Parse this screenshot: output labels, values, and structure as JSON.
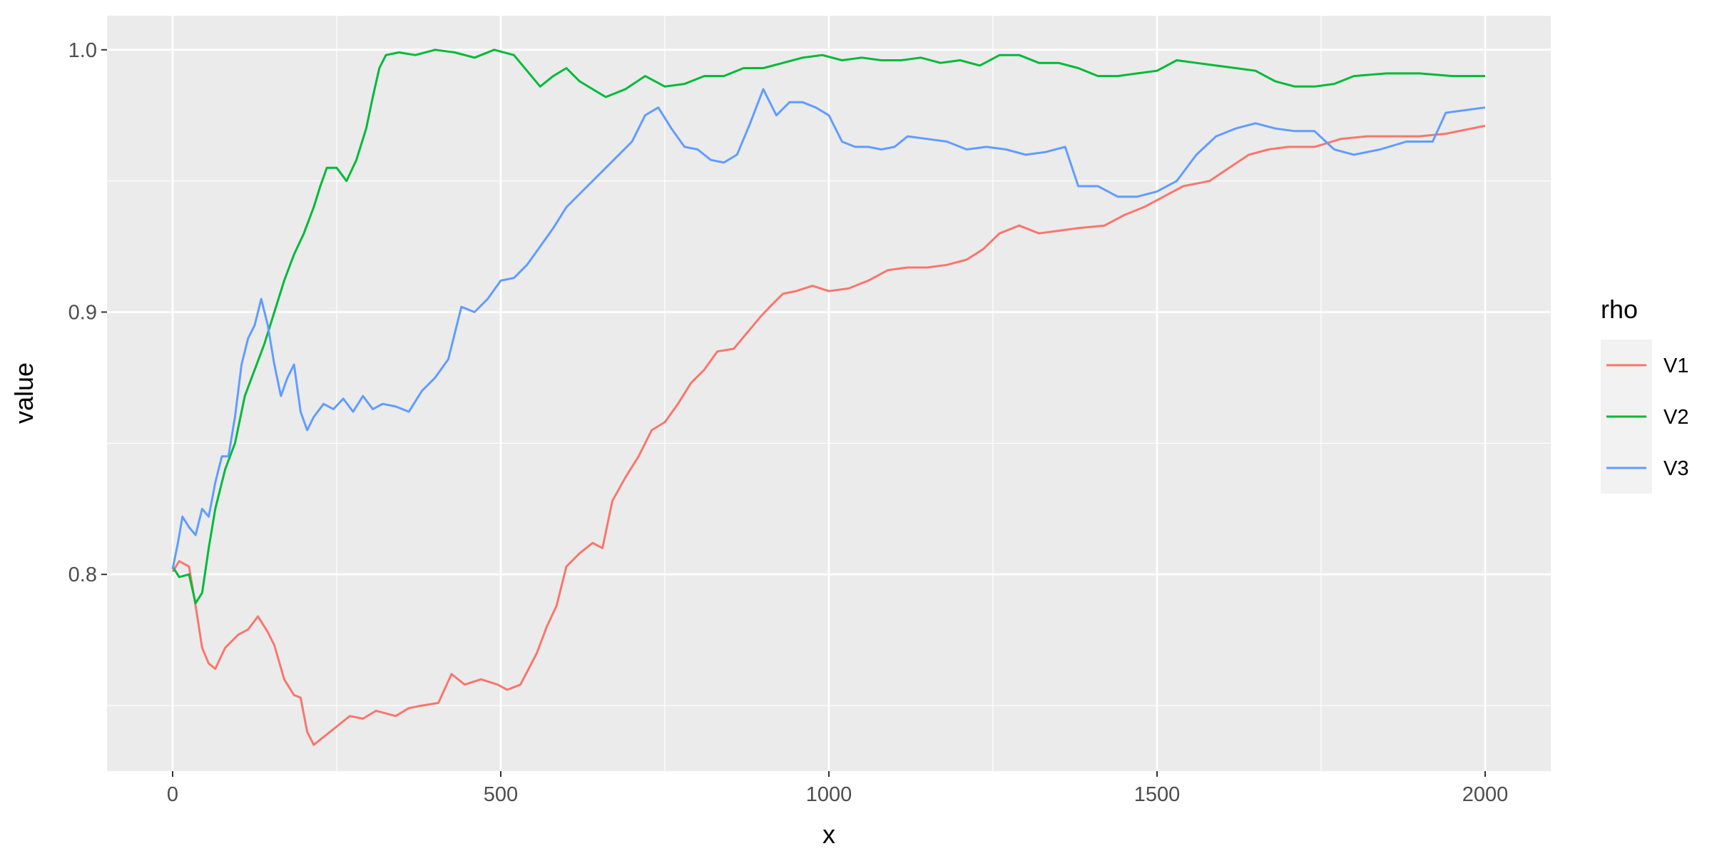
{
  "chart_data": {
    "type": "line",
    "xlabel": "x",
    "ylabel": "value",
    "xlim": [
      -100,
      2100
    ],
    "ylim": [
      0.725,
      1.013
    ],
    "x_ticks": [
      0,
      500,
      1000,
      1500,
      2000
    ],
    "x_tick_labels": [
      "0",
      "500",
      "1000",
      "1500",
      "2000"
    ],
    "y_ticks": [
      0.8,
      0.9,
      1.0
    ],
    "y_tick_labels": [
      "0.8",
      "0.9",
      "1.0"
    ],
    "grid": true,
    "legend": {
      "title": "rho",
      "position": "right"
    },
    "series": [
      {
        "name": "V1",
        "color": "#F8766D",
        "points": [
          [
            0,
            0.801
          ],
          [
            10,
            0.805
          ],
          [
            25,
            0.803
          ],
          [
            35,
            0.788
          ],
          [
            45,
            0.772
          ],
          [
            55,
            0.766
          ],
          [
            65,
            0.764
          ],
          [
            80,
            0.772
          ],
          [
            100,
            0.777
          ],
          [
            115,
            0.779
          ],
          [
            130,
            0.784
          ],
          [
            145,
            0.778
          ],
          [
            155,
            0.773
          ],
          [
            170,
            0.76
          ],
          [
            185,
            0.754
          ],
          [
            195,
            0.753
          ],
          [
            205,
            0.74
          ],
          [
            215,
            0.735
          ],
          [
            230,
            0.738
          ],
          [
            250,
            0.742
          ],
          [
            270,
            0.746
          ],
          [
            290,
            0.745
          ],
          [
            310,
            0.748
          ],
          [
            340,
            0.746
          ],
          [
            360,
            0.749
          ],
          [
            380,
            0.75
          ],
          [
            405,
            0.751
          ],
          [
            425,
            0.762
          ],
          [
            445,
            0.758
          ],
          [
            470,
            0.76
          ],
          [
            495,
            0.758
          ],
          [
            510,
            0.756
          ],
          [
            530,
            0.758
          ],
          [
            555,
            0.77
          ],
          [
            570,
            0.78
          ],
          [
            585,
            0.788
          ],
          [
            600,
            0.803
          ],
          [
            620,
            0.808
          ],
          [
            640,
            0.812
          ],
          [
            655,
            0.81
          ],
          [
            670,
            0.828
          ],
          [
            690,
            0.837
          ],
          [
            710,
            0.845
          ],
          [
            730,
            0.855
          ],
          [
            750,
            0.858
          ],
          [
            770,
            0.865
          ],
          [
            790,
            0.873
          ],
          [
            810,
            0.878
          ],
          [
            830,
            0.885
          ],
          [
            855,
            0.886
          ],
          [
            875,
            0.892
          ],
          [
            895,
            0.898
          ],
          [
            910,
            0.902
          ],
          [
            930,
            0.907
          ],
          [
            950,
            0.908
          ],
          [
            975,
            0.91
          ],
          [
            1000,
            0.908
          ],
          [
            1030,
            0.909
          ],
          [
            1060,
            0.912
          ],
          [
            1090,
            0.916
          ],
          [
            1120,
            0.917
          ],
          [
            1150,
            0.917
          ],
          [
            1180,
            0.918
          ],
          [
            1210,
            0.92
          ],
          [
            1235,
            0.924
          ],
          [
            1260,
            0.93
          ],
          [
            1290,
            0.933
          ],
          [
            1320,
            0.93
          ],
          [
            1350,
            0.931
          ],
          [
            1380,
            0.932
          ],
          [
            1420,
            0.933
          ],
          [
            1450,
            0.937
          ],
          [
            1480,
            0.94
          ],
          [
            1510,
            0.944
          ],
          [
            1540,
            0.948
          ],
          [
            1580,
            0.95
          ],
          [
            1610,
            0.955
          ],
          [
            1640,
            0.96
          ],
          [
            1670,
            0.962
          ],
          [
            1700,
            0.963
          ],
          [
            1740,
            0.963
          ],
          [
            1780,
            0.966
          ],
          [
            1820,
            0.967
          ],
          [
            1860,
            0.967
          ],
          [
            1900,
            0.967
          ],
          [
            1940,
            0.968
          ],
          [
            2000,
            0.971
          ]
        ]
      },
      {
        "name": "V2",
        "color": "#00BA38",
        "points": [
          [
            0,
            0.803
          ],
          [
            10,
            0.799
          ],
          [
            25,
            0.8
          ],
          [
            35,
            0.789
          ],
          [
            45,
            0.793
          ],
          [
            55,
            0.81
          ],
          [
            65,
            0.825
          ],
          [
            80,
            0.84
          ],
          [
            95,
            0.85
          ],
          [
            110,
            0.868
          ],
          [
            125,
            0.878
          ],
          [
            140,
            0.888
          ],
          [
            155,
            0.9
          ],
          [
            170,
            0.912
          ],
          [
            185,
            0.922
          ],
          [
            200,
            0.93
          ],
          [
            215,
            0.94
          ],
          [
            225,
            0.948
          ],
          [
            235,
            0.955
          ],
          [
            250,
            0.955
          ],
          [
            265,
            0.95
          ],
          [
            280,
            0.958
          ],
          [
            295,
            0.97
          ],
          [
            305,
            0.982
          ],
          [
            315,
            0.993
          ],
          [
            325,
            0.998
          ],
          [
            345,
            0.999
          ],
          [
            370,
            0.998
          ],
          [
            400,
            1.0
          ],
          [
            430,
            0.999
          ],
          [
            460,
            0.997
          ],
          [
            490,
            1.0
          ],
          [
            520,
            0.998
          ],
          [
            540,
            0.992
          ],
          [
            560,
            0.986
          ],
          [
            580,
            0.99
          ],
          [
            600,
            0.993
          ],
          [
            620,
            0.988
          ],
          [
            640,
            0.985
          ],
          [
            660,
            0.982
          ],
          [
            690,
            0.985
          ],
          [
            720,
            0.99
          ],
          [
            750,
            0.986
          ],
          [
            780,
            0.987
          ],
          [
            810,
            0.99
          ],
          [
            840,
            0.99
          ],
          [
            870,
            0.993
          ],
          [
            900,
            0.993
          ],
          [
            930,
            0.995
          ],
          [
            960,
            0.997
          ],
          [
            990,
            0.998
          ],
          [
            1020,
            0.996
          ],
          [
            1050,
            0.997
          ],
          [
            1080,
            0.996
          ],
          [
            1110,
            0.996
          ],
          [
            1140,
            0.997
          ],
          [
            1170,
            0.995
          ],
          [
            1200,
            0.996
          ],
          [
            1230,
            0.994
          ],
          [
            1260,
            0.998
          ],
          [
            1290,
            0.998
          ],
          [
            1320,
            0.995
          ],
          [
            1350,
            0.995
          ],
          [
            1380,
            0.993
          ],
          [
            1410,
            0.99
          ],
          [
            1440,
            0.99
          ],
          [
            1470,
            0.991
          ],
          [
            1500,
            0.992
          ],
          [
            1530,
            0.996
          ],
          [
            1560,
            0.995
          ],
          [
            1590,
            0.994
          ],
          [
            1620,
            0.993
          ],
          [
            1650,
            0.992
          ],
          [
            1680,
            0.988
          ],
          [
            1710,
            0.986
          ],
          [
            1740,
            0.986
          ],
          [
            1770,
            0.987
          ],
          [
            1800,
            0.99
          ],
          [
            1850,
            0.991
          ],
          [
            1900,
            0.991
          ],
          [
            1950,
            0.99
          ],
          [
            2000,
            0.99
          ]
        ]
      },
      {
        "name": "V3",
        "color": "#619CFF",
        "points": [
          [
            0,
            0.802
          ],
          [
            8,
            0.812
          ],
          [
            15,
            0.822
          ],
          [
            25,
            0.818
          ],
          [
            35,
            0.815
          ],
          [
            45,
            0.825
          ],
          [
            55,
            0.822
          ],
          [
            65,
            0.835
          ],
          [
            75,
            0.845
          ],
          [
            85,
            0.845
          ],
          [
            95,
            0.86
          ],
          [
            105,
            0.88
          ],
          [
            115,
            0.89
          ],
          [
            125,
            0.895
          ],
          [
            135,
            0.905
          ],
          [
            145,
            0.895
          ],
          [
            155,
            0.88
          ],
          [
            165,
            0.868
          ],
          [
            175,
            0.875
          ],
          [
            185,
            0.88
          ],
          [
            195,
            0.862
          ],
          [
            205,
            0.855
          ],
          [
            215,
            0.86
          ],
          [
            230,
            0.865
          ],
          [
            245,
            0.863
          ],
          [
            260,
            0.867
          ],
          [
            275,
            0.862
          ],
          [
            290,
            0.868
          ],
          [
            305,
            0.863
          ],
          [
            320,
            0.865
          ],
          [
            340,
            0.864
          ],
          [
            360,
            0.862
          ],
          [
            380,
            0.87
          ],
          [
            400,
            0.875
          ],
          [
            420,
            0.882
          ],
          [
            440,
            0.902
          ],
          [
            460,
            0.9
          ],
          [
            480,
            0.905
          ],
          [
            500,
            0.912
          ],
          [
            520,
            0.913
          ],
          [
            540,
            0.918
          ],
          [
            560,
            0.925
          ],
          [
            580,
            0.932
          ],
          [
            600,
            0.94
          ],
          [
            620,
            0.945
          ],
          [
            640,
            0.95
          ],
          [
            660,
            0.955
          ],
          [
            680,
            0.96
          ],
          [
            700,
            0.965
          ],
          [
            720,
            0.975
          ],
          [
            740,
            0.978
          ],
          [
            760,
            0.97
          ],
          [
            780,
            0.963
          ],
          [
            800,
            0.962
          ],
          [
            820,
            0.958
          ],
          [
            840,
            0.957
          ],
          [
            860,
            0.96
          ],
          [
            880,
            0.972
          ],
          [
            900,
            0.985
          ],
          [
            920,
            0.975
          ],
          [
            940,
            0.98
          ],
          [
            960,
            0.98
          ],
          [
            980,
            0.978
          ],
          [
            1000,
            0.975
          ],
          [
            1020,
            0.965
          ],
          [
            1040,
            0.963
          ],
          [
            1060,
            0.963
          ],
          [
            1080,
            0.962
          ],
          [
            1100,
            0.963
          ],
          [
            1120,
            0.967
          ],
          [
            1150,
            0.966
          ],
          [
            1180,
            0.965
          ],
          [
            1210,
            0.962
          ],
          [
            1240,
            0.963
          ],
          [
            1270,
            0.962
          ],
          [
            1300,
            0.96
          ],
          [
            1330,
            0.961
          ],
          [
            1360,
            0.963
          ],
          [
            1380,
            0.948
          ],
          [
            1410,
            0.948
          ],
          [
            1440,
            0.944
          ],
          [
            1470,
            0.944
          ],
          [
            1500,
            0.946
          ],
          [
            1530,
            0.95
          ],
          [
            1560,
            0.96
          ],
          [
            1590,
            0.967
          ],
          [
            1620,
            0.97
          ],
          [
            1650,
            0.972
          ],
          [
            1680,
            0.97
          ],
          [
            1710,
            0.969
          ],
          [
            1740,
            0.969
          ],
          [
            1770,
            0.962
          ],
          [
            1800,
            0.96
          ],
          [
            1840,
            0.962
          ],
          [
            1880,
            0.965
          ],
          [
            1920,
            0.965
          ],
          [
            1940,
            0.976
          ],
          [
            2000,
            0.978
          ]
        ]
      }
    ]
  }
}
